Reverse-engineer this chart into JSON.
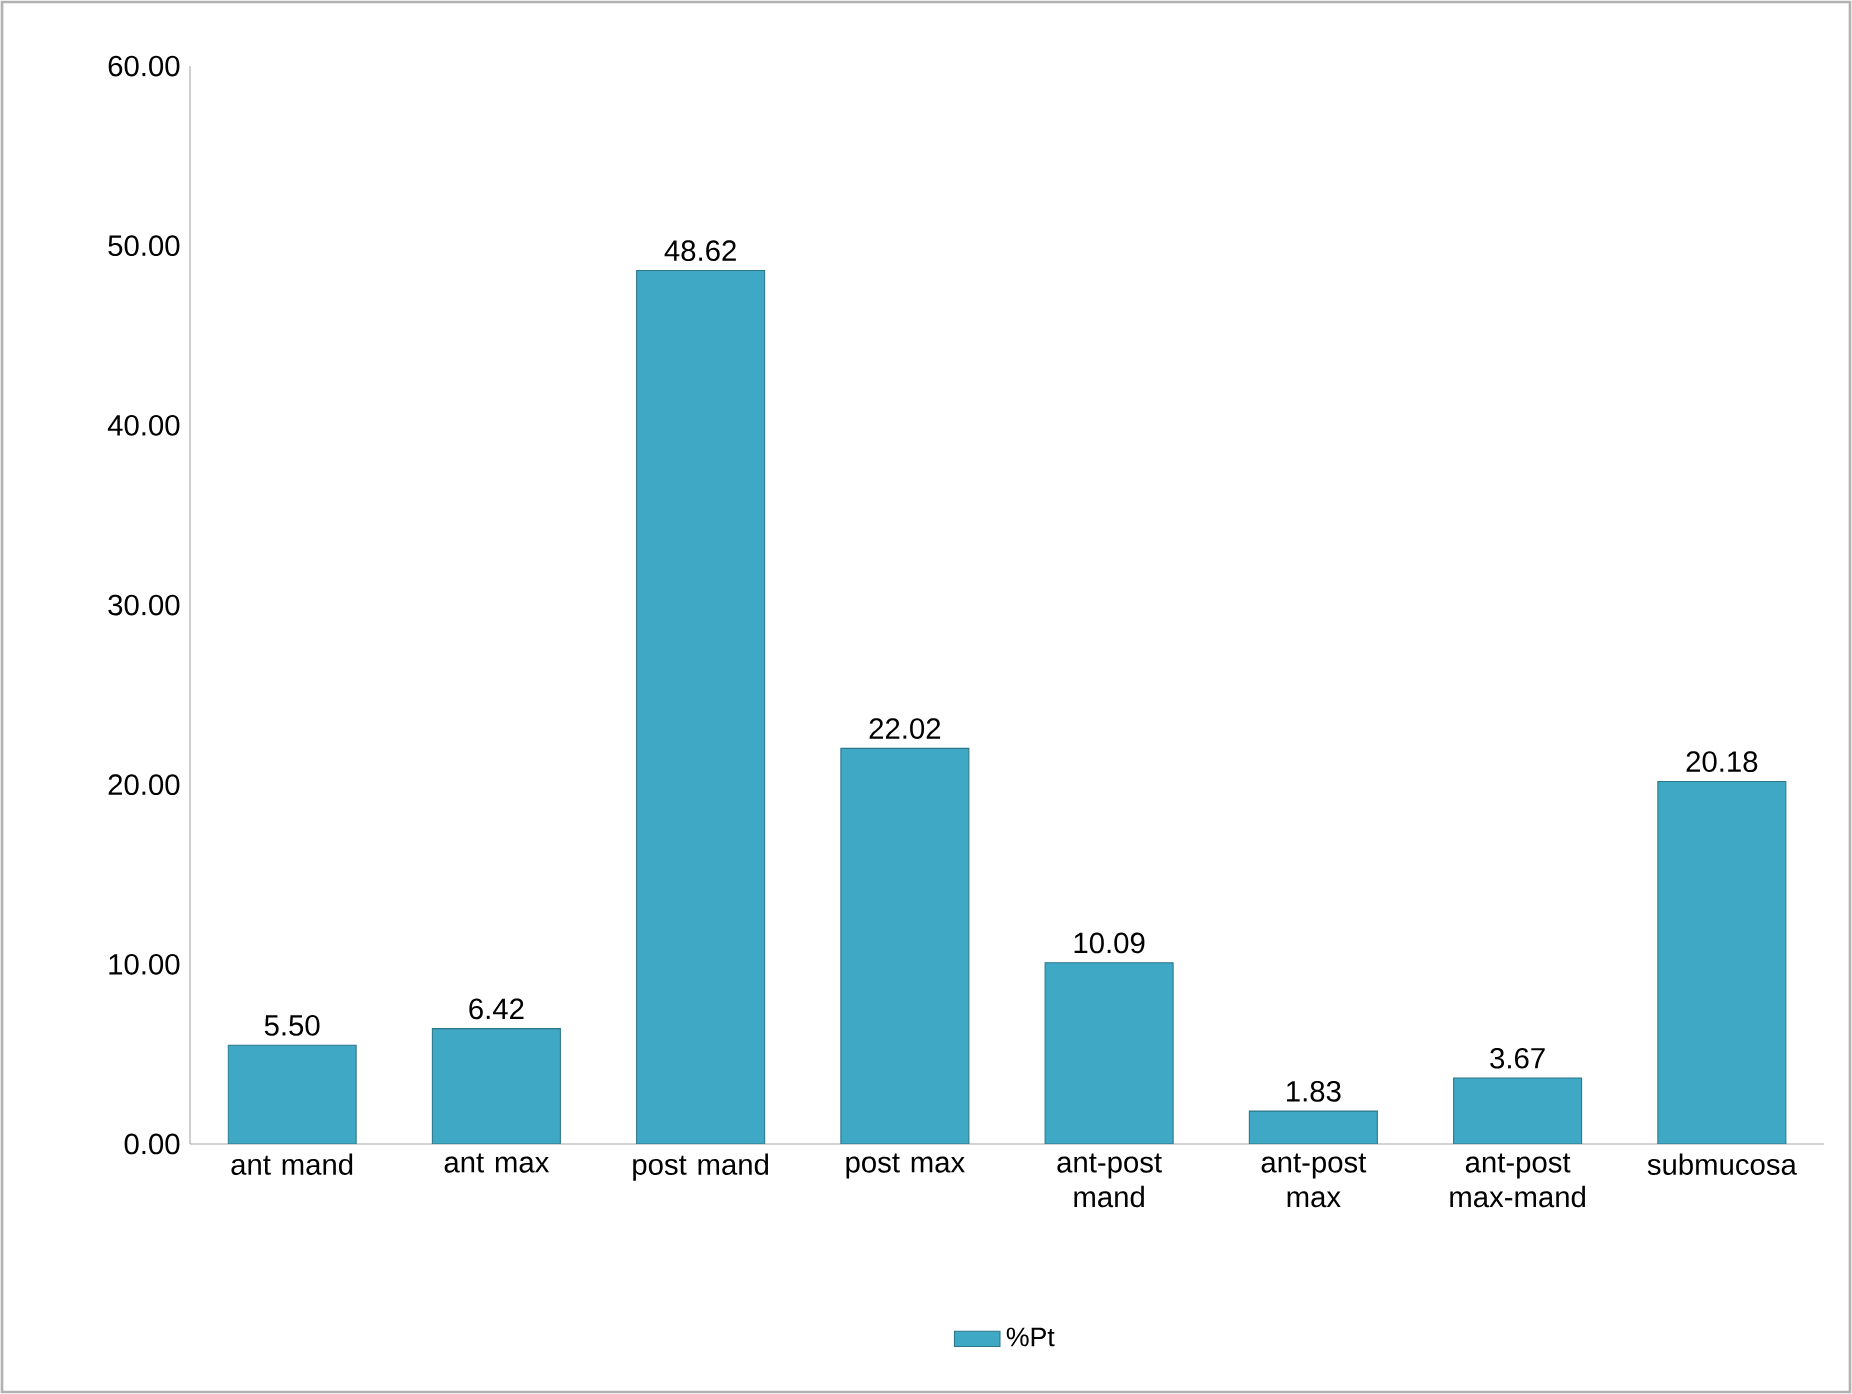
{
  "chart_data": {
    "type": "bar",
    "categories": [
      "ant mand",
      "ant max",
      "post mand",
      "post max",
      "ant-post mand",
      "ant-post max",
      "ant-post max-mand",
      "submucosa"
    ],
    "series": [
      {
        "name": "%Pt",
        "color": "#3fa9c5",
        "values": [
          5.5,
          6.42,
          48.62,
          22.02,
          10.09,
          1.83,
          3.67,
          20.18
        ]
      }
    ],
    "value_labels": [
      "5.50",
      "6.42",
      "48.62",
      "22.02",
      "10.09",
      "1.83",
      "3.67",
      "20.18"
    ],
    "ylim": [
      0,
      60
    ],
    "yticks": [
      {
        "value": 0,
        "label": "0.00"
      },
      {
        "value": 10,
        "label": "10.00"
      },
      {
        "value": 20,
        "label": "20.00"
      },
      {
        "value": 30,
        "label": "30.00"
      },
      {
        "value": 40,
        "label": "40.00"
      },
      {
        "value": 50,
        "label": "50.00"
      },
      {
        "value": 60,
        "label": "60.00"
      }
    ],
    "legend": "bottom"
  }
}
